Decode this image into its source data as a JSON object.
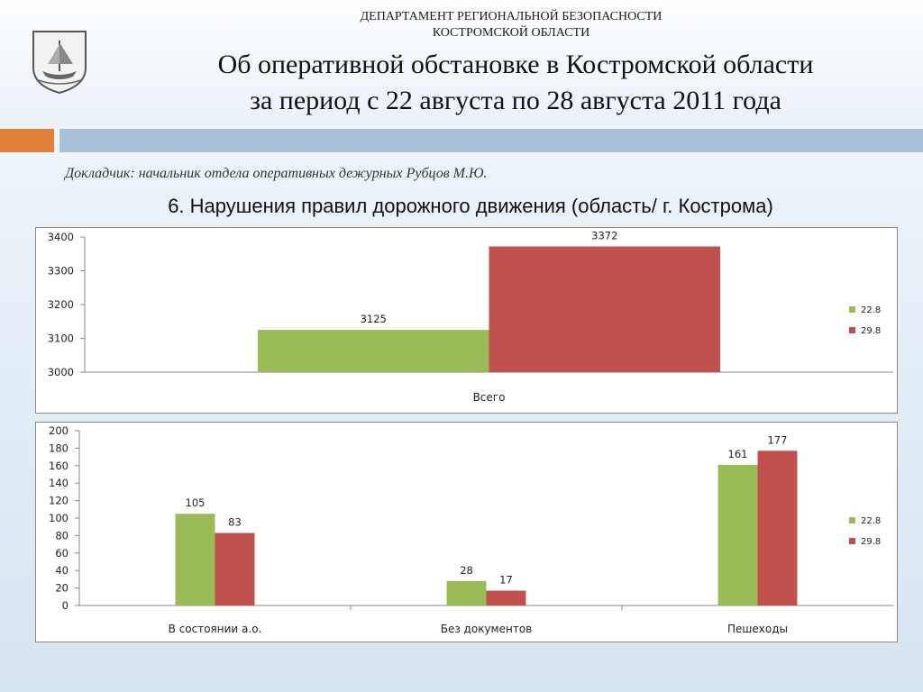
{
  "header": {
    "department": "ДЕПАРТАМЕНТ РЕГИОНАЛЬНОЙ БЕЗОПАСНОСТИ\nКОСТРОМСКОЙ ОБЛАСТИ",
    "title": "Об оперативной обстановке в Костромской области\nза период с 22 августа по 28 августа 2011 года"
  },
  "reporter": "Докладчик: начальник отдела оперативных дежурных Рубцов М.Ю.",
  "subtitle": "6. Нарушения правил дорожного движения (область/ г. Кострома)",
  "colors": {
    "green": "#9bbb59",
    "red": "#c0504d",
    "orange": "#e0803a",
    "band": "#a8c0d8"
  },
  "chart_data": [
    {
      "type": "bar",
      "categories": [
        "Всего"
      ],
      "series": [
        {
          "name": "22.8",
          "values": [
            3125
          ],
          "color": "#9bbb59"
        },
        {
          "name": "29.8",
          "values": [
            3372
          ],
          "color": "#c0504d"
        }
      ],
      "ylim": [
        3000,
        3400
      ],
      "yticks": [
        3000,
        3100,
        3200,
        3300,
        3400
      ],
      "legend": "right",
      "grid": false
    },
    {
      "type": "bar",
      "categories": [
        "В состоянии а.о.",
        "Без документов",
        "Пешеходы"
      ],
      "series": [
        {
          "name": "22.8",
          "values": [
            105,
            28,
            161
          ],
          "color": "#9bbb59"
        },
        {
          "name": "29.8",
          "values": [
            83,
            17,
            177
          ],
          "color": "#c0504d"
        }
      ],
      "ylim": [
        0,
        200
      ],
      "yticks": [
        0,
        20,
        40,
        60,
        80,
        100,
        120,
        140,
        160,
        180,
        200
      ],
      "legend": "right",
      "grid": false
    }
  ]
}
